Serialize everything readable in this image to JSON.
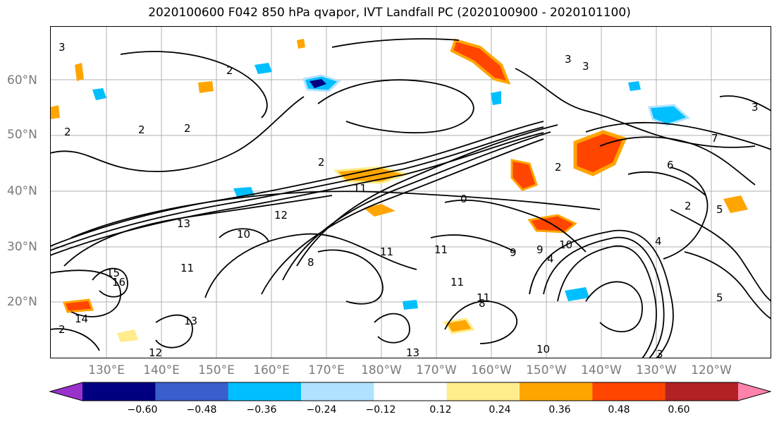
{
  "title": "2020100600 F042 850 hPa qvapor, IVT Landfall PC (2020100900 - 2020101100)",
  "map": {
    "type": "contour-map",
    "latitude_labels": [
      "60°N",
      "50°N",
      "40°N",
      "30°N",
      "20°N"
    ],
    "longitude_labels": [
      "130°E",
      "140°E",
      "150°E",
      "160°E",
      "170°E",
      "180°W",
      "170°W",
      "160°W",
      "150°W",
      "140°W",
      "130°W",
      "120°W"
    ],
    "contour_labels": [
      "3",
      "2",
      "2",
      "2",
      "2",
      "2",
      "2",
      "3",
      "3",
      "3",
      "7",
      "6",
      "2",
      "2",
      "0",
      "11",
      "12",
      "13",
      "11",
      "11",
      "11",
      "11",
      "11",
      "10",
      "10",
      "9",
      "9",
      "8",
      "8",
      "4",
      "4",
      "5",
      "13",
      "13",
      "14",
      "15",
      "16",
      "12",
      "10",
      "5",
      "3"
    ],
    "colors": {
      "negative_strong": "#000080",
      "negative_mid": "#3a5fcd",
      "negative_light": "#00bfff",
      "negative_pale": "#b0e2ff",
      "positive_pale": "#ffec8b",
      "positive_mid": "#ffa500",
      "positive_strong": "#ff4500",
      "positive_dark": "#b22222",
      "contour": "#000000",
      "grid": "#b0b0b0"
    }
  },
  "colorbar": {
    "ticks": [
      "−0.60",
      "−0.48",
      "−0.36",
      "−0.24",
      "−0.12",
      "0.12",
      "0.24",
      "0.36",
      "0.48",
      "0.60"
    ],
    "colors": [
      "#9932cc",
      "#000080",
      "#3a5fcd",
      "#00bfff",
      "#b0e2ff",
      "#ffffff",
      "#ffec8b",
      "#ffa500",
      "#ff4500",
      "#b22222",
      "#ff82ab"
    ]
  }
}
